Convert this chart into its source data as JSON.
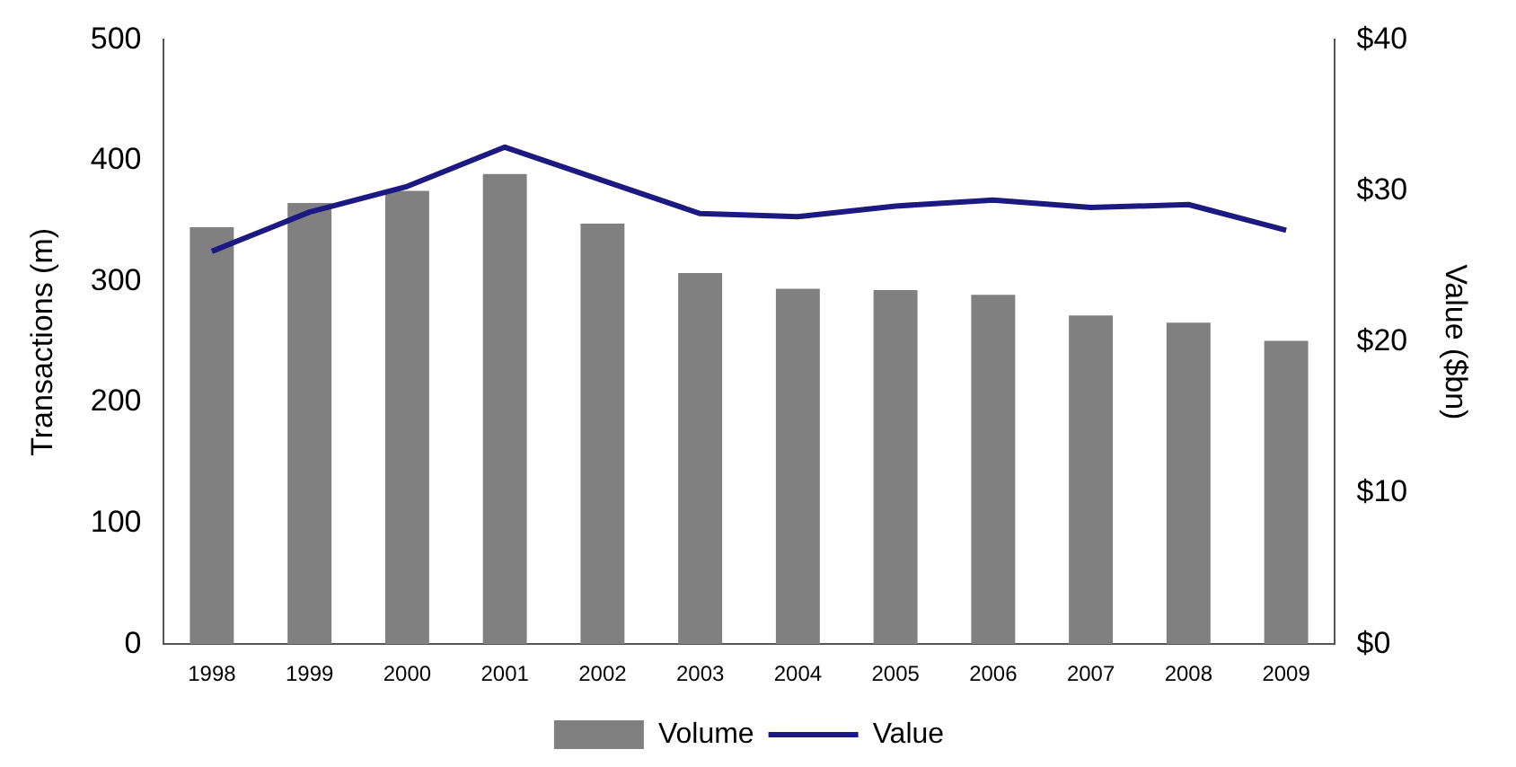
{
  "chart_data": {
    "type": "bar",
    "categories": [
      "1998",
      "1999",
      "2000",
      "2001",
      "2002",
      "2003",
      "2004",
      "2005",
      "2006",
      "2007",
      "2008",
      "2009"
    ],
    "series": [
      {
        "name": "Volume",
        "color": "#808080",
        "values": [
          345,
          365,
          375,
          389,
          348,
          307,
          294,
          293,
          289,
          272,
          266,
          251
        ]
      },
      {
        "name": "Value",
        "type": "line",
        "axis": "y2",
        "color": "#1c1a80",
        "values": [
          26.0,
          28.6,
          30.3,
          32.9,
          30.7,
          28.5,
          28.3,
          29.0,
          29.4,
          28.9,
          29.1,
          27.4
        ]
      }
    ],
    "ylabel": "Transactions (m)",
    "y2label": "Value ($bn)",
    "ylim": [
      0,
      500
    ],
    "yticks": [
      0,
      100,
      200,
      300,
      400,
      500
    ],
    "y2lim": [
      0,
      40
    ],
    "y2ticks": [
      {
        "value": 0,
        "label": "$0"
      },
      {
        "value": 10,
        "label": "$10"
      },
      {
        "value": 20,
        "label": "$20"
      },
      {
        "value": 30,
        "label": "$30"
      },
      {
        "value": 40,
        "label": "$40"
      }
    ],
    "grid": false,
    "legend": "bottom",
    "marker": "none"
  }
}
